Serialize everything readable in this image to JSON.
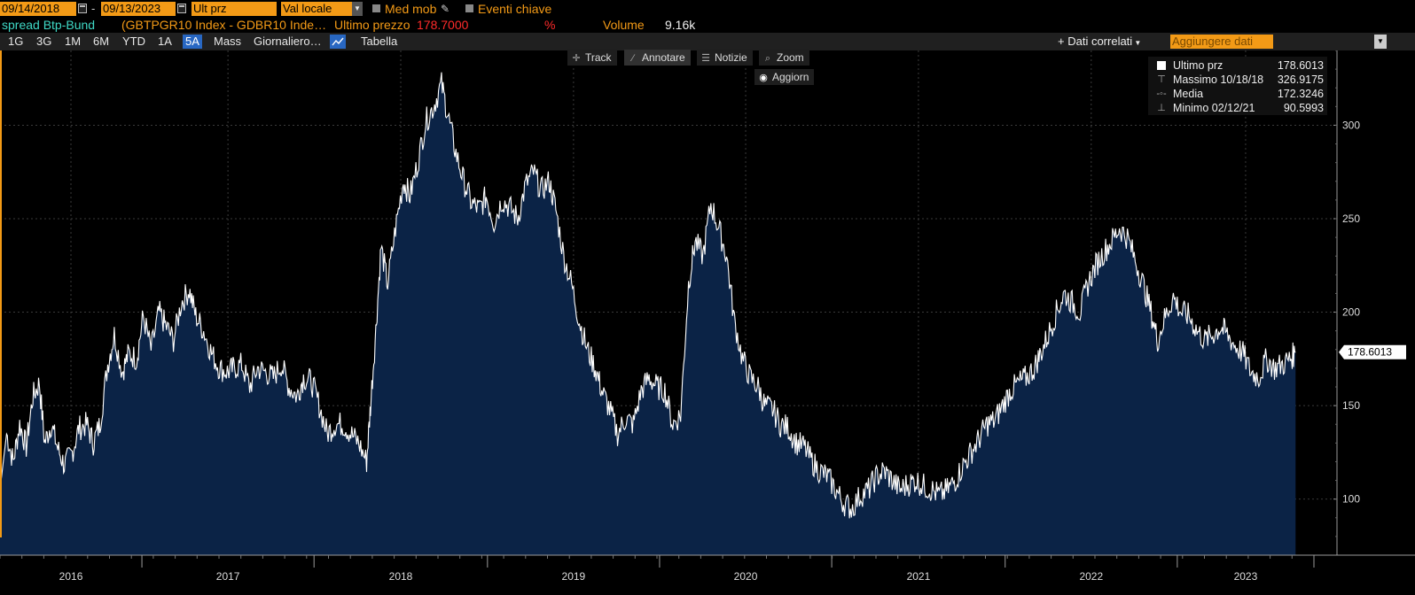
{
  "header": {
    "start_date": "09/14/2018",
    "date_sep": "-",
    "end_date": "09/13/2023",
    "field": "Ult prz",
    "currency": "Val locale",
    "moving_avg_label": "Med mob",
    "key_events_label": "Eventi chiave"
  },
  "security": {
    "name": "spread Btp-Bund",
    "tickers": "(GBTPGR10 Index - GDBR10 Inde…",
    "last_price_label": "Ultimo prezzo",
    "last_price_value": "178.7000",
    "percent_sign": "%",
    "volume_label": "Volume",
    "volume_value": "9.16k"
  },
  "toolbar": {
    "periods": [
      "1G",
      "3G",
      "1M",
      "6M",
      "YTD",
      "1A",
      "5A",
      "Mass"
    ],
    "active_period": "5A",
    "frequency": "Giornaliero…",
    "table_label": "Tabella",
    "related_data": "Dati correlati",
    "add_data_placeholder": "Aggiungere dati"
  },
  "tools": {
    "track": "Track",
    "annotate": "Annotare",
    "news": "Notizie",
    "zoom": "Zoom",
    "refresh": "Aggiorn"
  },
  "legend": {
    "last": {
      "label": "Ultimo prz",
      "value": "178.6013"
    },
    "max": {
      "label": "Massimo 10/18/18",
      "value": "326.9175"
    },
    "mean": {
      "label": "Media",
      "value": "172.3246"
    },
    "min": {
      "label": "Minimo 02/12/21",
      "value": "90.5993"
    }
  },
  "colors": {
    "accent": "#f39a16",
    "line": "#ffffff",
    "fill": "#0b2346",
    "security_name": "#3fd9c6",
    "price_value": "#ff2a2a",
    "last_marker_bg": "#ffffff"
  },
  "chart_data": {
    "type": "area",
    "x_labels": [
      "2016",
      "2017",
      "2018",
      "2019",
      "2020",
      "2021",
      "2022",
      "2023"
    ],
    "y_ticks": [
      100,
      150,
      200,
      250,
      300
    ],
    "ylim": [
      70,
      340
    ],
    "last_value_label": "178.6013",
    "points": [
      [
        0.0,
        105
      ],
      [
        0.5,
        135
      ],
      [
        1.0,
        120
      ],
      [
        1.5,
        140
      ],
      [
        2.0,
        128
      ],
      [
        2.5,
        155
      ],
      [
        3.0,
        162
      ],
      [
        3.4,
        130
      ],
      [
        3.9,
        140
      ],
      [
        4.4,
        127
      ],
      [
        4.9,
        118
      ],
      [
        5.5,
        125
      ],
      [
        6.0,
        138
      ],
      [
        6.6,
        140
      ],
      [
        7.1,
        130
      ],
      [
        7.6,
        140
      ],
      [
        8.2,
        172
      ],
      [
        8.7,
        188
      ],
      [
        9.3,
        168
      ],
      [
        9.8,
        178
      ],
      [
        10.4,
        175
      ],
      [
        10.9,
        198
      ],
      [
        11.5,
        180
      ],
      [
        12.1,
        200
      ],
      [
        12.6,
        193
      ],
      [
        13.2,
        185
      ],
      [
        13.8,
        205
      ],
      [
        14.4,
        212
      ],
      [
        14.9,
        198
      ],
      [
        15.5,
        190
      ],
      [
        16.1,
        178
      ],
      [
        16.7,
        170
      ],
      [
        17.3,
        168
      ],
      [
        17.8,
        170
      ],
      [
        18.4,
        172
      ],
      [
        19.0,
        160
      ],
      [
        19.6,
        170
      ],
      [
        20.2,
        168
      ],
      [
        20.8,
        165
      ],
      [
        21.4,
        172
      ],
      [
        22.0,
        160
      ],
      [
        22.6,
        155
      ],
      [
        23.1,
        165
      ],
      [
        23.7,
        163
      ],
      [
        24.3,
        150
      ],
      [
        24.9,
        135
      ],
      [
        25.5,
        140
      ],
      [
        26.1,
        140
      ],
      [
        26.7,
        135
      ],
      [
        27.3,
        130
      ],
      [
        27.9,
        120
      ],
      [
        28.2,
        150
      ],
      [
        28.6,
        190
      ],
      [
        29.0,
        235
      ],
      [
        29.5,
        215
      ],
      [
        30.1,
        245
      ],
      [
        30.7,
        270
      ],
      [
        31.2,
        262
      ],
      [
        31.8,
        280
      ],
      [
        32.4,
        302
      ],
      [
        33.0,
        310
      ],
      [
        33.6,
        322
      ],
      [
        34.1,
        305
      ],
      [
        34.7,
        285
      ],
      [
        35.3,
        270
      ],
      [
        35.9,
        258
      ],
      [
        36.5,
        255
      ],
      [
        37.0,
        262
      ],
      [
        37.6,
        248
      ],
      [
        38.2,
        260
      ],
      [
        38.8,
        256
      ],
      [
        39.4,
        250
      ],
      [
        40.0,
        268
      ],
      [
        40.6,
        275
      ],
      [
        41.2,
        265
      ],
      [
        41.8,
        270
      ],
      [
        42.3,
        255
      ],
      [
        42.9,
        230
      ],
      [
        43.5,
        215
      ],
      [
        44.1,
        195
      ],
      [
        44.7,
        180
      ],
      [
        45.3,
        170
      ],
      [
        45.8,
        158
      ],
      [
        46.4,
        148
      ],
      [
        47.0,
        135
      ],
      [
        47.6,
        143
      ],
      [
        48.2,
        140
      ],
      [
        48.8,
        158
      ],
      [
        49.4,
        165
      ],
      [
        50.0,
        160
      ],
      [
        50.6,
        158
      ],
      [
        51.2,
        140
      ],
      [
        51.8,
        145
      ],
      [
        52.4,
        215
      ],
      [
        52.9,
        238
      ],
      [
        53.5,
        230
      ],
      [
        54.1,
        258
      ],
      [
        54.7,
        245
      ],
      [
        55.3,
        230
      ],
      [
        55.9,
        195
      ],
      [
        56.5,
        175
      ],
      [
        57.1,
        165
      ],
      [
        57.7,
        160
      ],
      [
        58.2,
        150
      ],
      [
        58.8,
        148
      ],
      [
        59.4,
        140
      ],
      [
        60.0,
        138
      ],
      [
        60.6,
        130
      ],
      [
        61.2,
        128
      ],
      [
        61.8,
        120
      ],
      [
        62.4,
        115
      ],
      [
        63.0,
        112
      ],
      [
        63.6,
        105
      ],
      [
        64.2,
        98
      ],
      [
        64.8,
        95
      ],
      [
        65.5,
        102
      ],
      [
        66.1,
        105
      ],
      [
        66.7,
        112
      ],
      [
        67.3,
        115
      ],
      [
        67.9,
        110
      ],
      [
        68.5,
        105
      ],
      [
        69.1,
        108
      ],
      [
        69.7,
        110
      ],
      [
        70.3,
        107
      ],
      [
        70.9,
        105
      ],
      [
        71.5,
        102
      ],
      [
        72.1,
        105
      ],
      [
        72.7,
        110
      ],
      [
        73.3,
        118
      ],
      [
        73.9,
        125
      ],
      [
        74.5,
        132
      ],
      [
        75.1,
        140
      ],
      [
        75.7,
        142
      ],
      [
        76.3,
        150
      ],
      [
        76.9,
        158
      ],
      [
        77.5,
        162
      ],
      [
        78.1,
        165
      ],
      [
        78.7,
        170
      ],
      [
        79.2,
        178
      ],
      [
        79.8,
        188
      ],
      [
        80.4,
        200
      ],
      [
        81.0,
        210
      ],
      [
        81.6,
        205
      ],
      [
        82.2,
        200
      ],
      [
        82.8,
        215
      ],
      [
        83.4,
        225
      ],
      [
        84.0,
        232
      ],
      [
        84.6,
        238
      ],
      [
        85.2,
        245
      ],
      [
        85.8,
        240
      ],
      [
        86.4,
        228
      ],
      [
        87.0,
        215
      ],
      [
        87.6,
        200
      ],
      [
        88.1,
        185
      ],
      [
        88.7,
        198
      ],
      [
        89.3,
        208
      ],
      [
        89.9,
        200
      ],
      [
        90.5,
        198
      ],
      [
        91.1,
        190
      ],
      [
        91.7,
        185
      ],
      [
        92.3,
        188
      ],
      [
        92.9,
        192
      ],
      [
        93.4,
        188
      ],
      [
        94.0,
        182
      ],
      [
        94.6,
        178
      ],
      [
        95.2,
        168
      ],
      [
        95.8,
        165
      ],
      [
        96.4,
        175
      ],
      [
        97.0,
        170
      ],
      [
        97.6,
        172
      ],
      [
        98.2,
        175
      ],
      [
        98.6,
        178.6
      ]
    ]
  }
}
